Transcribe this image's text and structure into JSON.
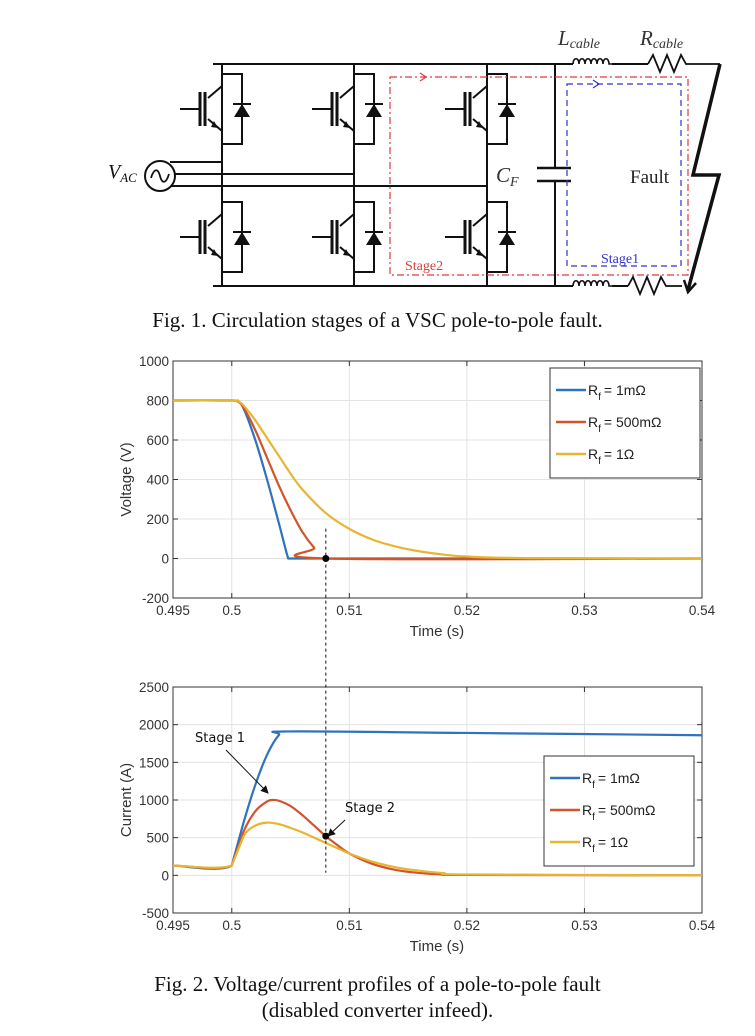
{
  "figure1": {
    "caption": "Fig. 1.  Circulation stages of a VSC pole-to-pole fault.",
    "labels": {
      "vac_main": "V",
      "vac_sub": "AC",
      "l_main": "L",
      "l_sub": "cable",
      "r_main": "R",
      "r_sub": "cable",
      "cf_main": "C",
      "cf_sub": "F",
      "fault": "Fault",
      "stage1": "Stage1",
      "stage2": "Stage2"
    },
    "colors": {
      "stage1": "#3333cc",
      "stage2": "#e03a3a"
    }
  },
  "figure2": {
    "caption_line1": "Fig. 2.  Voltage/current profiles of a pole-to-pole fault",
    "caption_line2": "(disabled converter infeed).",
    "annotations": {
      "stage1": "Stage 1",
      "stage2": "Stage 2"
    },
    "legend_prefix": "R",
    "legend_sub": "f",
    "legend_items": [
      "= 1mΩ",
      "= 500mΩ",
      "= 1Ω"
    ]
  },
  "chart_data": [
    {
      "type": "line",
      "title": "",
      "xlabel": "Time (s)",
      "ylabel": "Voltage (V)",
      "xlim": [
        0.495,
        0.54
      ],
      "ylim": [
        -200,
        1000
      ],
      "xticks": [
        0.495,
        0.5,
        0.51,
        0.52,
        0.53,
        0.54
      ],
      "xtick_labels": [
        "0.495",
        "0.5",
        "0.51",
        "0.52",
        "0.53",
        "0.54"
      ],
      "yticks": [
        -200,
        0,
        200,
        400,
        600,
        800,
        1000
      ],
      "ytick_labels": [
        "-200",
        "0",
        "200",
        "400",
        "600",
        "800",
        "1000"
      ],
      "grid": true,
      "legend_position": "top-right",
      "marker": {
        "x": 0.508,
        "y": 0
      },
      "series": [
        {
          "name": "Rf = 1mΩ",
          "color": "#2f72bd",
          "x": [
            0.495,
            0.5,
            0.5005,
            0.501,
            0.502,
            0.503,
            0.504,
            0.5048,
            0.505,
            0.54
          ],
          "y": [
            800,
            800,
            795,
            760,
            600,
            400,
            180,
            0,
            0,
            0
          ]
        },
        {
          "name": "Rf = 500mΩ",
          "color": "#d2542a",
          "x": [
            0.495,
            0.5,
            0.5005,
            0.501,
            0.502,
            0.503,
            0.504,
            0.505,
            0.506,
            0.507,
            0.508,
            0.54
          ],
          "y": [
            800,
            800,
            795,
            765,
            650,
            510,
            370,
            245,
            135,
            55,
            0,
            0
          ]
        },
        {
          "name": "Rf = 1Ω",
          "color": "#e8b530",
          "x": [
            0.495,
            0.5,
            0.5005,
            0.501,
            0.502,
            0.503,
            0.504,
            0.505,
            0.506,
            0.508,
            0.51,
            0.512,
            0.514,
            0.516,
            0.518,
            0.52,
            0.525,
            0.54
          ],
          "y": [
            800,
            800,
            797,
            775,
            700,
            610,
            520,
            430,
            350,
            230,
            150,
            95,
            60,
            36,
            20,
            10,
            2,
            0
          ]
        }
      ]
    },
    {
      "type": "line",
      "title": "",
      "xlabel": "Time (s)",
      "ylabel": "Current (A)",
      "xlim": [
        0.495,
        0.54
      ],
      "ylim": [
        -500,
        2500
      ],
      "xticks": [
        0.495,
        0.5,
        0.51,
        0.52,
        0.53,
        0.54
      ],
      "xtick_labels": [
        "0.495",
        "0.5",
        "0.51",
        "0.52",
        "0.53",
        "0.54"
      ],
      "yticks": [
        -500,
        0,
        500,
        1000,
        1500,
        2000,
        2500
      ],
      "ytick_labels": [
        "-500",
        "0",
        "500",
        "1000",
        "1500",
        "2000",
        "2500"
      ],
      "grid": true,
      "legend_position": "center-right",
      "marker": {
        "x": 0.508,
        "y": 520
      },
      "series": [
        {
          "name": "Rf = 1mΩ",
          "color": "#2f72bd",
          "x": [
            0.495,
            0.5,
            0.501,
            0.502,
            0.503,
            0.504,
            0.5048,
            0.52,
            0.54
          ],
          "y": [
            130,
            130,
            700,
            1200,
            1600,
            1860,
            1910,
            1890,
            1860
          ]
        },
        {
          "name": "Rf = 500mΩ",
          "color": "#d2542a",
          "x": [
            0.495,
            0.5,
            0.501,
            0.502,
            0.503,
            0.5035,
            0.504,
            0.505,
            0.506,
            0.507,
            0.508,
            0.509,
            0.51,
            0.512,
            0.514,
            0.516,
            0.518,
            0.52,
            0.54
          ],
          "y": [
            130,
            130,
            580,
            850,
            980,
            1000,
            990,
            920,
            800,
            660,
            520,
            400,
            290,
            150,
            70,
            30,
            12,
            5,
            0
          ]
        },
        {
          "name": "Rf = 1Ω",
          "color": "#e8b530",
          "x": [
            0.495,
            0.5,
            0.501,
            0.502,
            0.503,
            0.504,
            0.505,
            0.506,
            0.507,
            0.508,
            0.509,
            0.51,
            0.512,
            0.514,
            0.516,
            0.518,
            0.52,
            0.54
          ],
          "y": [
            130,
            130,
            520,
            660,
            700,
            680,
            630,
            570,
            500,
            430,
            360,
            290,
            180,
            105,
            60,
            30,
            12,
            0
          ]
        }
      ]
    }
  ]
}
